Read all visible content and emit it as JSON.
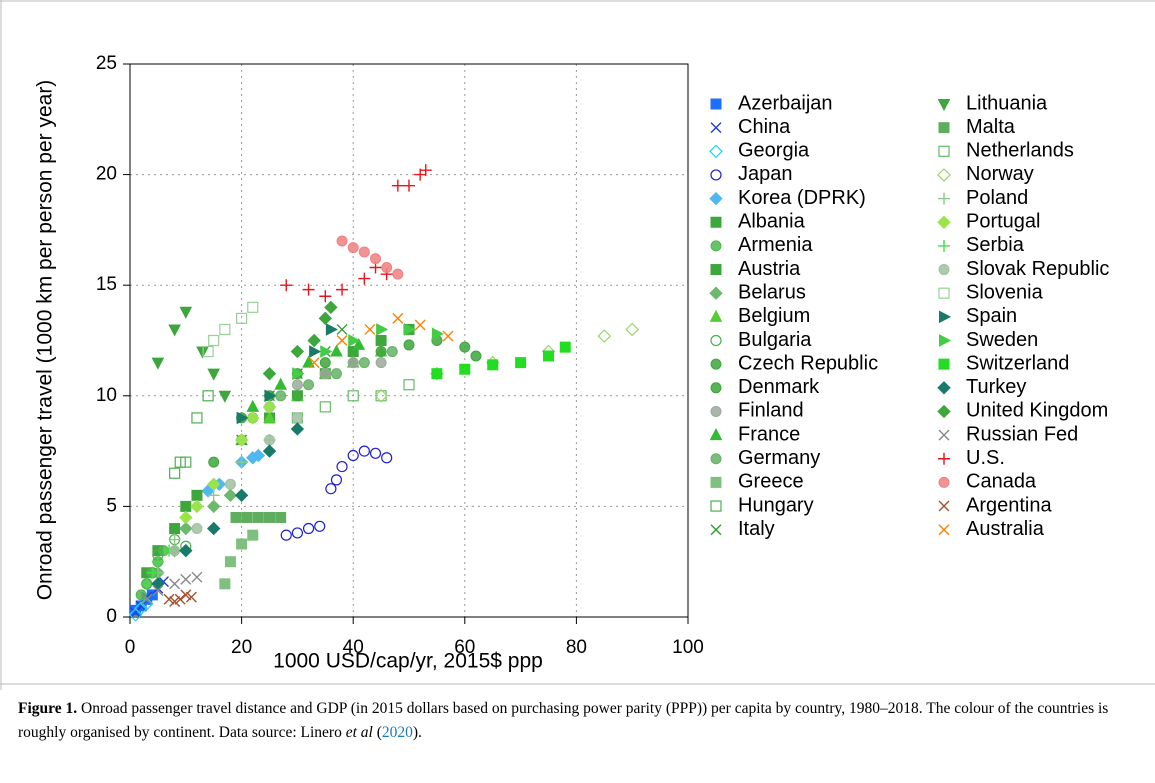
{
  "chart_data": {
    "type": "scatter",
    "x_label": "1000 USD/cap/yr, 2015$ ppp",
    "y_label": "Onroad passenger travel (1000 km per person per year)",
    "xlim": [
      0,
      100
    ],
    "xticks": [
      0,
      20,
      40,
      60,
      80,
      100
    ],
    "ylim": [
      0,
      25
    ],
    "yticks": [
      0,
      5,
      10,
      15,
      20,
      25
    ],
    "grid": true,
    "series": [
      {
        "name": "Azerbaijan",
        "color": "#1f6fff",
        "marker": "square",
        "x": [
          1,
          2,
          3,
          4
        ],
        "values": [
          0.3,
          0.5,
          0.8,
          1.0
        ]
      },
      {
        "name": "China",
        "color": "#1f3fd0",
        "marker": "x",
        "x": [
          1,
          2,
          3,
          5,
          6
        ],
        "values": [
          0.2,
          0.5,
          0.9,
          1.3,
          1.6
        ]
      },
      {
        "name": "Georgia",
        "color": "#22d3f5",
        "marker": "diamond-open",
        "x": [
          1,
          2,
          3
        ],
        "values": [
          0.1,
          0.4,
          0.6
        ]
      },
      {
        "name": "Japan",
        "color": "#2020d0",
        "marker": "circle-open",
        "x": [
          28,
          30,
          32,
          34,
          36,
          37,
          38,
          40,
          42,
          44,
          46
        ],
        "values": [
          3.7,
          3.8,
          4.0,
          4.1,
          5.8,
          6.2,
          6.8,
          7.3,
          7.5,
          7.4,
          7.2
        ]
      },
      {
        "name": "Korea (DPRK)",
        "color": "#4fb8f0",
        "marker": "diamond",
        "x": [
          14,
          16,
          20,
          22,
          23
        ],
        "values": [
          5.7,
          6.0,
          7.0,
          7.2,
          7.3
        ]
      },
      {
        "name": "Albania",
        "color": "#3da63d",
        "marker": "square",
        "x": [
          3,
          5,
          8,
          10,
          12
        ],
        "values": [
          2.0,
          3.0,
          4.0,
          5.0,
          5.5
        ]
      },
      {
        "name": "Armenia",
        "color": "#4cb84c",
        "marker": "circle",
        "x": [
          2,
          3,
          4,
          5,
          6
        ],
        "values": [
          1.0,
          1.5,
          2.0,
          2.5,
          3.0
        ]
      },
      {
        "name": "Austria",
        "color": "#3da63d",
        "marker": "square",
        "x": [
          25,
          30,
          35,
          40,
          45,
          50
        ],
        "values": [
          9.0,
          10.0,
          11.0,
          12.0,
          12.5,
          13.0
        ]
      },
      {
        "name": "Belarus",
        "color": "#6cb86c",
        "marker": "diamond",
        "x": [
          5,
          8,
          10,
          15,
          18
        ],
        "values": [
          2.0,
          3.0,
          4.0,
          5.0,
          5.5
        ]
      },
      {
        "name": "Belgium",
        "color": "#55cc33",
        "marker": "triangle",
        "x": [
          20,
          25,
          30,
          35,
          40,
          45
        ],
        "values": [
          8.0,
          9.0,
          10.0,
          11.0,
          11.5,
          12.0
        ]
      },
      {
        "name": "Bulgaria",
        "color": "#4caf50",
        "marker": "circle-open",
        "x": [
          3,
          4,
          5,
          8,
          10
        ],
        "values": [
          1.5,
          2.0,
          2.8,
          3.5,
          3.2
        ]
      },
      {
        "name": "Czech Republic",
        "color": "#3da63d",
        "marker": "circle",
        "x": [
          15,
          20,
          25,
          30,
          35
        ],
        "values": [
          7.0,
          9.0,
          10.0,
          11.0,
          11.5
        ]
      },
      {
        "name": "Denmark",
        "color": "#3da63d",
        "marker": "circle",
        "x": [
          30,
          35,
          40,
          45,
          50,
          55,
          60,
          62
        ],
        "values": [
          10.0,
          11.0,
          11.5,
          12.0,
          12.3,
          12.5,
          12.2,
          11.8
        ]
      },
      {
        "name": "Finland",
        "color": "#9aa99a",
        "marker": "circle",
        "x": [
          20,
          25,
          30,
          35,
          40,
          45
        ],
        "values": [
          8.0,
          9.5,
          10.5,
          11.0,
          11.5,
          11.5
        ]
      },
      {
        "name": "France",
        "color": "#33bb33",
        "marker": "triangle",
        "x": [
          22,
          27,
          32,
          37,
          41
        ],
        "values": [
          9.5,
          10.5,
          11.5,
          12.0,
          12.3
        ]
      },
      {
        "name": "Germany",
        "color": "#66b266",
        "marker": "circle",
        "x": [
          22,
          27,
          32,
          37,
          42,
          47
        ],
        "values": [
          9.0,
          10.0,
          10.5,
          11.0,
          11.5,
          12.0
        ]
      },
      {
        "name": "Greece",
        "color": "#7fbf7f",
        "marker": "square",
        "x": [
          17,
          18,
          20,
          22
        ],
        "values": [
          1.5,
          2.5,
          3.3,
          3.7
        ]
      },
      {
        "name": "Hungary",
        "color": "#4caf50",
        "marker": "square-open",
        "x": [
          8,
          9,
          10,
          12,
          14
        ],
        "values": [
          6.5,
          7.0,
          7.0,
          9.0,
          10.0
        ]
      },
      {
        "name": "Italy",
        "color": "#2e9e2e",
        "marker": "x",
        "x": [
          20,
          25,
          30,
          35,
          38
        ],
        "values": [
          8.0,
          10.0,
          11.0,
          12.0,
          13.0
        ]
      },
      {
        "name": "Lithuania",
        "color": "#3da63d",
        "marker": "triangle-down",
        "x": [
          5,
          8,
          10,
          13,
          15,
          17
        ],
        "values": [
          11.5,
          13.0,
          13.8,
          12.0,
          11.0,
          10.0
        ]
      },
      {
        "name": "Malta",
        "color": "#5fae5f",
        "marker": "square",
        "x": [
          19,
          21,
          23,
          25,
          27
        ],
        "values": [
          4.5,
          4.5,
          4.5,
          4.5,
          4.5
        ]
      },
      {
        "name": "Netherlands",
        "color": "#66bb66",
        "marker": "square-open",
        "x": [
          30,
          35,
          40,
          45,
          50
        ],
        "values": [
          9.0,
          9.5,
          10.0,
          10.0,
          10.5
        ]
      },
      {
        "name": "Norway",
        "color": "#9ad66a",
        "marker": "diamond-open",
        "x": [
          45,
          55,
          65,
          75,
          85,
          90
        ],
        "values": [
          10.0,
          11.0,
          11.5,
          12.0,
          12.7,
          13.0
        ]
      },
      {
        "name": "Poland",
        "color": "#88cc88",
        "marker": "plus",
        "x": [
          5,
          8,
          10,
          15,
          20,
          25
        ],
        "values": [
          2.0,
          3.5,
          4.5,
          5.5,
          7.0,
          8.0
        ]
      },
      {
        "name": "Portugal",
        "color": "#9be34b",
        "marker": "diamond",
        "x": [
          10,
          12,
          15,
          20,
          22,
          25
        ],
        "values": [
          4.5,
          5.0,
          6.0,
          8.0,
          9.0,
          9.5
        ]
      },
      {
        "name": "Serbia",
        "color": "#44dd44",
        "marker": "plus",
        "x": [
          3,
          4,
          5,
          7
        ],
        "values": [
          1.5,
          2.0,
          2.5,
          3.0
        ]
      },
      {
        "name": "Slovak Republic",
        "color": "#a0c0a0",
        "marker": "circle",
        "x": [
          8,
          12,
          18,
          25,
          30
        ],
        "values": [
          3.0,
          4.0,
          6.0,
          8.0,
          9.0
        ]
      },
      {
        "name": "Slovenia",
        "color": "#99d099",
        "marker": "square-open",
        "x": [
          14,
          15,
          17,
          20,
          22
        ],
        "values": [
          12.0,
          12.5,
          13.0,
          13.5,
          14.0
        ]
      },
      {
        "name": "Spain",
        "color": "#1a7a6a",
        "marker": "triangle-right",
        "x": [
          20,
          25,
          30,
          33,
          36
        ],
        "values": [
          9.0,
          10.0,
          11.0,
          12.0,
          13.0
        ]
      },
      {
        "name": "Sweden",
        "color": "#44cc44",
        "marker": "triangle-right",
        "x": [
          30,
          35,
          40,
          45,
          50,
          55
        ],
        "values": [
          11.0,
          12.0,
          12.5,
          13.0,
          13.0,
          12.8
        ]
      },
      {
        "name": "Switzerland",
        "color": "#22dd22",
        "marker": "square",
        "x": [
          55,
          60,
          65,
          70,
          75,
          78
        ],
        "values": [
          11.0,
          11.2,
          11.4,
          11.5,
          11.8,
          12.2
        ]
      },
      {
        "name": "Turkey",
        "color": "#1a7a6a",
        "marker": "diamond",
        "x": [
          5,
          10,
          15,
          20,
          25,
          30
        ],
        "values": [
          1.5,
          3.0,
          4.0,
          5.5,
          7.5,
          8.5
        ]
      },
      {
        "name": "United Kingdom",
        "color": "#3da63d",
        "marker": "diamond",
        "x": [
          25,
          30,
          33,
          35,
          36
        ],
        "values": [
          11.0,
          12.0,
          12.5,
          13.5,
          14.0
        ]
      },
      {
        "name": "Russian Fed",
        "color": "#888888",
        "marker": "x",
        "x": [
          3,
          5,
          8,
          10,
          12
        ],
        "values": [
          0.8,
          1.2,
          1.5,
          1.7,
          1.8
        ]
      },
      {
        "name": "U.S.",
        "color": "#e8141c",
        "marker": "plus",
        "x": [
          28,
          32,
          35,
          38,
          42,
          44,
          46,
          48,
          50,
          52,
          53
        ],
        "values": [
          15.0,
          14.8,
          14.5,
          14.8,
          15.3,
          15.8,
          15.5,
          19.5,
          19.5,
          20.0,
          20.2
        ]
      },
      {
        "name": "Canada",
        "color": "#f08080",
        "marker": "circle",
        "x": [
          38,
          40,
          42,
          44,
          46,
          48
        ],
        "values": [
          17.0,
          16.7,
          16.5,
          16.2,
          15.8,
          15.5
        ]
      },
      {
        "name": "Argentina",
        "color": "#a0522d",
        "marker": "x",
        "x": [
          7,
          8,
          9,
          10,
          11
        ],
        "values": [
          0.8,
          0.7,
          0.8,
          1.0,
          0.9
        ]
      },
      {
        "name": "Australia",
        "color": "#ff8000",
        "marker": "x",
        "x": [
          33,
          38,
          43,
          48,
          52,
          57
        ],
        "values": [
          11.5,
          12.5,
          13.0,
          13.5,
          13.2,
          12.7
        ]
      }
    ]
  },
  "caption": {
    "label": "Figure 1.",
    "text": "Onroad passenger travel distance and GDP (in 2015 dollars based on purchasing power parity (PPP)) per capita by country, 1980–2018. The colour of the countries is roughly organised by continent. Data source: Linero ",
    "italic": "et al",
    "open": " (",
    "year": "2020",
    "close": ")."
  }
}
